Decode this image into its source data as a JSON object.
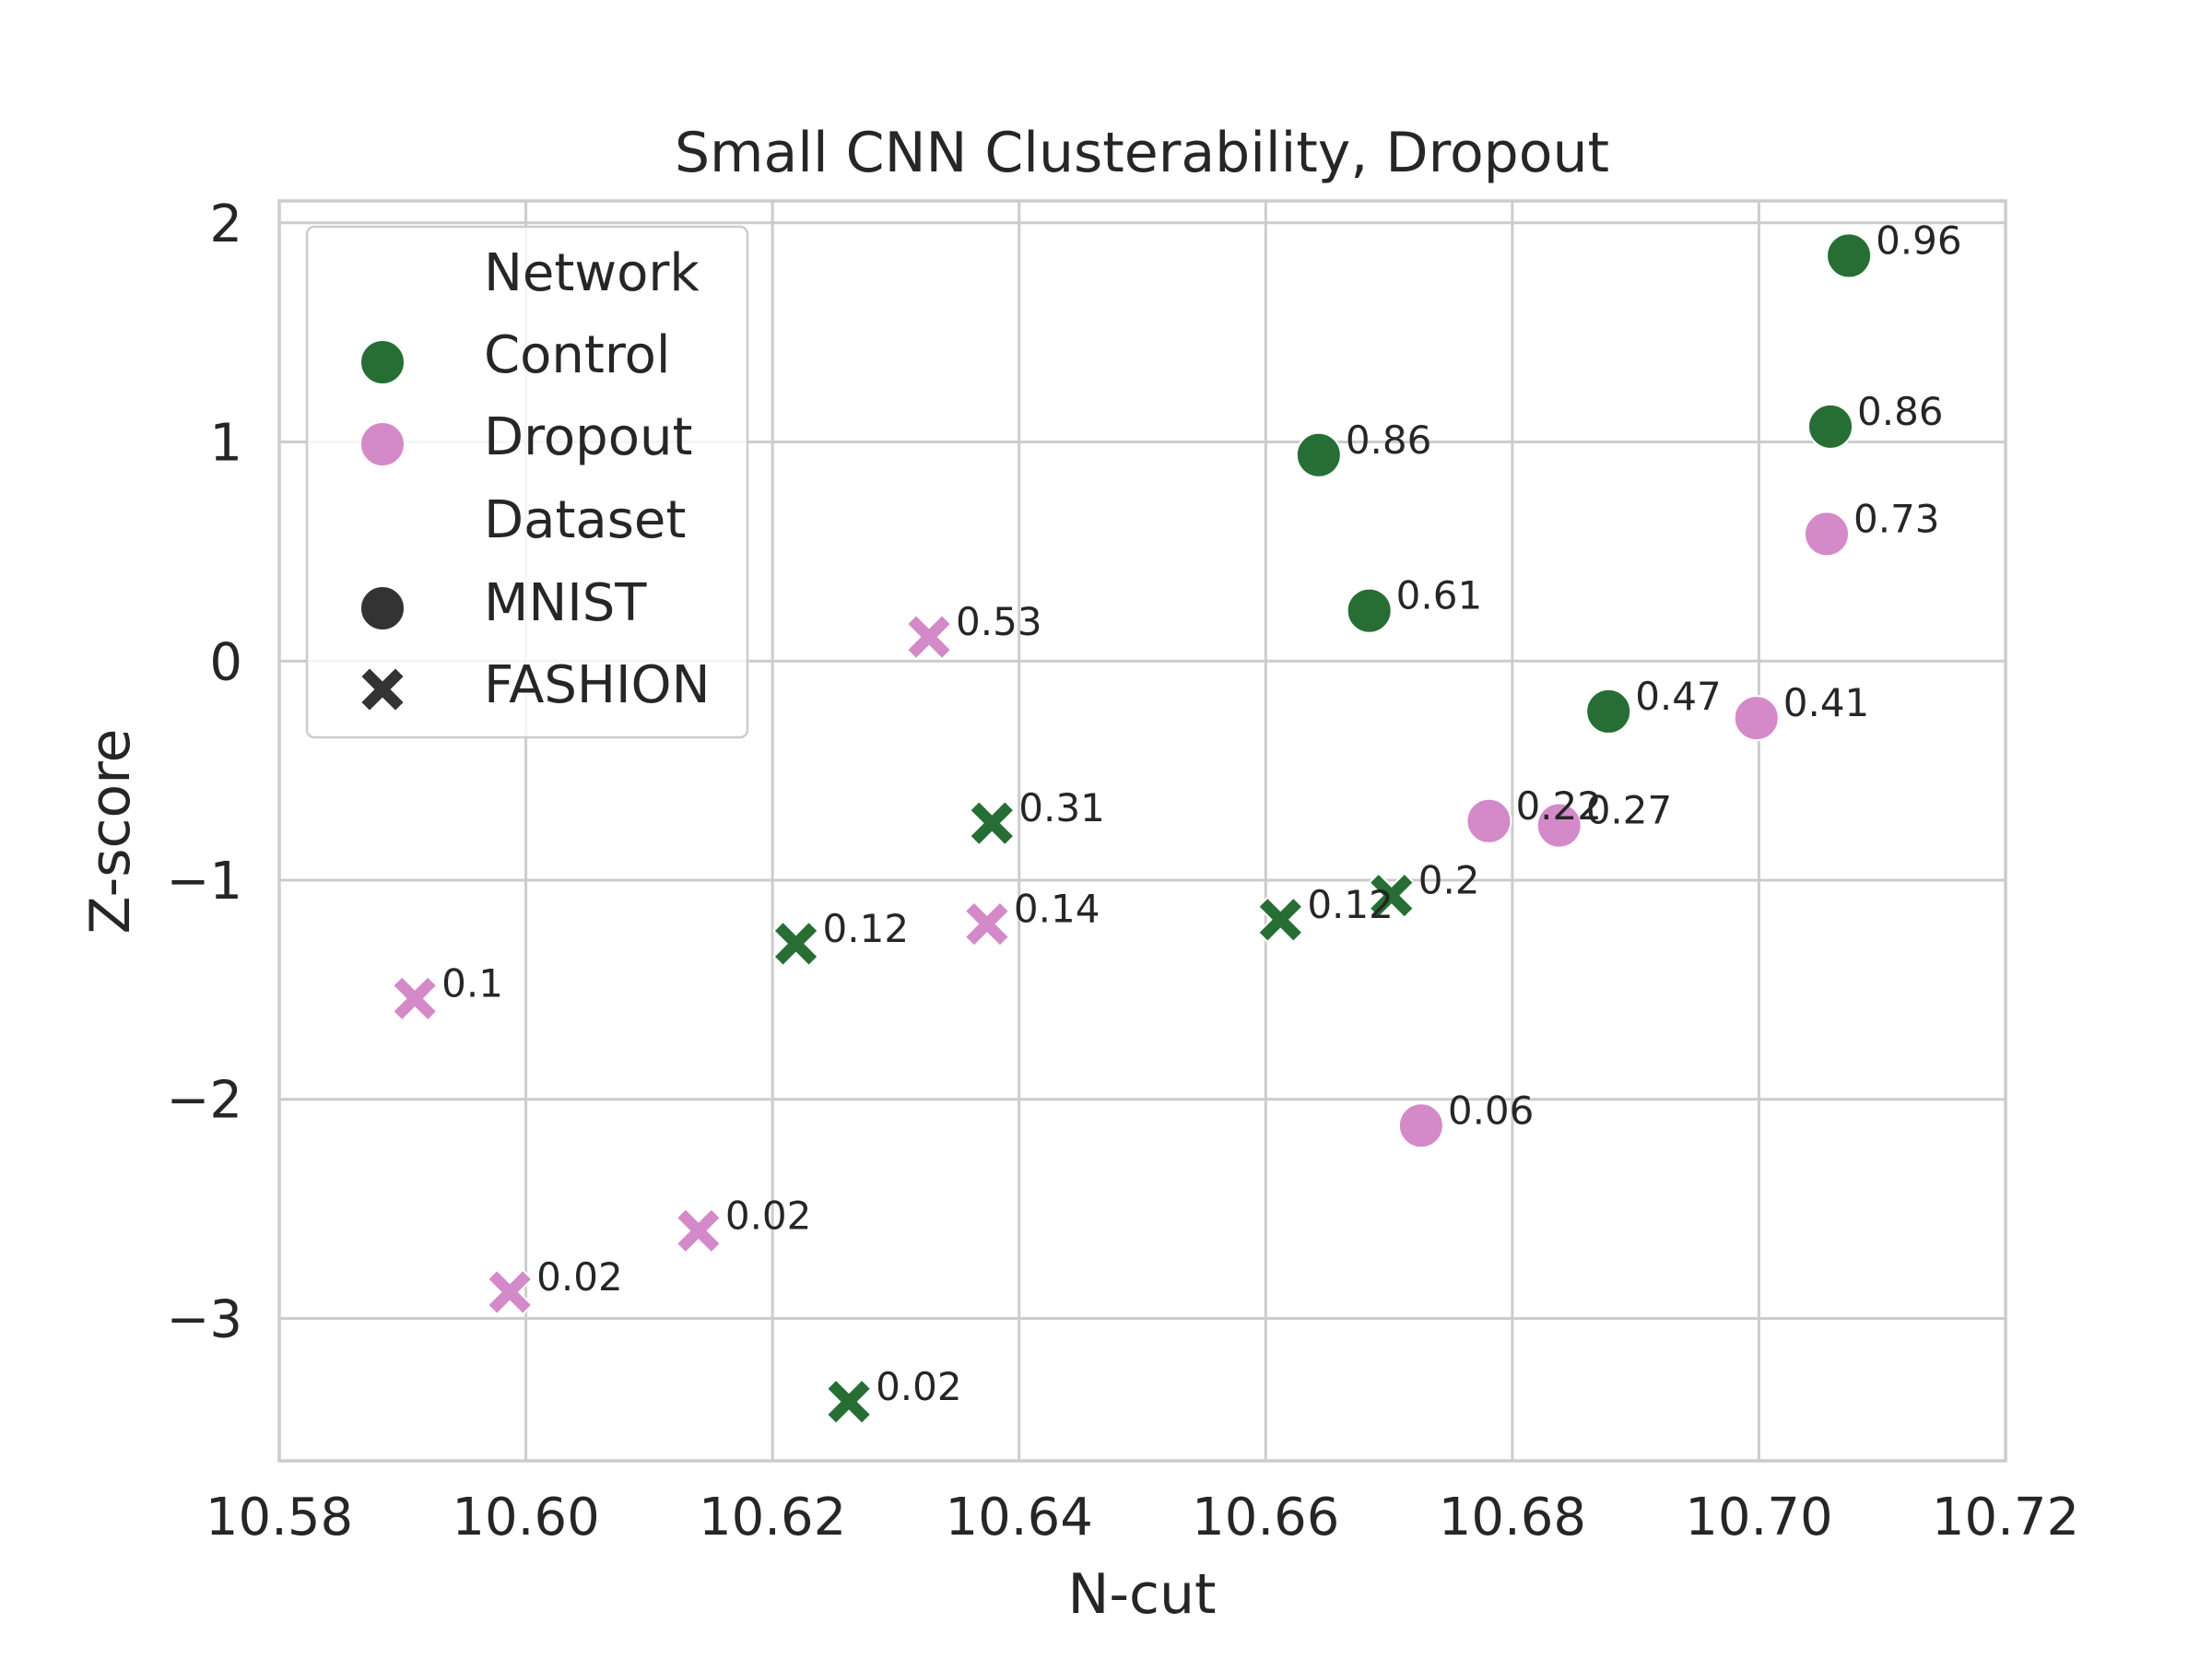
{
  "chart_data": {
    "type": "scatter",
    "title": "Small CNN Clusterability, Dropout",
    "xlabel": "N-cut",
    "ylabel": "Z-score",
    "xlim": [
      10.58,
      10.72
    ],
    "ylim": [
      -3.65,
      2.1
    ],
    "xticks": [
      10.58,
      10.6,
      10.62,
      10.64,
      10.66,
      10.68,
      10.7,
      10.72
    ],
    "xtick_labels": [
      "10.58",
      "10.60",
      "10.62",
      "10.64",
      "10.66",
      "10.68",
      "10.70",
      "10.72"
    ],
    "yticks": [
      2,
      1,
      0,
      -1,
      -2,
      -3
    ],
    "ytick_labels": [
      "2",
      "1",
      "0",
      "−1",
      "−2",
      "−3"
    ],
    "grid": true,
    "legend": {
      "position": "top-left",
      "network_title": "Network",
      "network_entries": [
        {
          "label": "Control",
          "color": "#276e35"
        },
        {
          "label": "Dropout",
          "color": "#d48ac8"
        }
      ],
      "dataset_title": "Dataset",
      "dataset_entries": [
        {
          "label": "MNIST",
          "marker": "circle"
        },
        {
          "label": "FASHION",
          "marker": "x"
        }
      ]
    },
    "colors": {
      "Control": "#276e35",
      "Dropout": "#d48ac8",
      "grid": "#cccccc",
      "text": "#262626",
      "legend_marker": "#333333"
    },
    "points": [
      {
        "x": 10.7073,
        "y": 1.85,
        "network": "Control",
        "dataset": "MNIST",
        "label": "0.96"
      },
      {
        "x": 10.7058,
        "y": 1.07,
        "network": "Control",
        "dataset": "MNIST",
        "label": "0.86"
      },
      {
        "x": 10.6643,
        "y": 0.94,
        "network": "Control",
        "dataset": "MNIST",
        "label": "0.86"
      },
      {
        "x": 10.6684,
        "y": 0.23,
        "network": "Control",
        "dataset": "MNIST",
        "label": "0.61"
      },
      {
        "x": 10.6878,
        "y": -0.23,
        "network": "Control",
        "dataset": "MNIST",
        "label": "0.47"
      },
      {
        "x": 10.7055,
        "y": 0.58,
        "network": "Dropout",
        "dataset": "MNIST",
        "label": "0.73"
      },
      {
        "x": 10.6998,
        "y": -0.26,
        "network": "Dropout",
        "dataset": "MNIST",
        "label": "0.41"
      },
      {
        "x": 10.6781,
        "y": -0.73,
        "network": "Dropout",
        "dataset": "MNIST",
        "label": "0.22"
      },
      {
        "x": 10.6838,
        "y": -0.75,
        "network": "Dropout",
        "dataset": "MNIST",
        "label": "0.27"
      },
      {
        "x": 10.6726,
        "y": -2.12,
        "network": "Dropout",
        "dataset": "MNIST",
        "label": "0.06"
      },
      {
        "x": 10.6378,
        "y": -0.74,
        "network": "Control",
        "dataset": "FASHION",
        "label": "0.31"
      },
      {
        "x": 10.6219,
        "y": -1.29,
        "network": "Control",
        "dataset": "FASHION",
        "label": "0.12"
      },
      {
        "x": 10.6612,
        "y": -1.18,
        "network": "Control",
        "dataset": "FASHION",
        "label": "0.12"
      },
      {
        "x": 10.6702,
        "y": -1.07,
        "network": "Control",
        "dataset": "FASHION",
        "label": "0.2"
      },
      {
        "x": 10.6262,
        "y": -3.38,
        "network": "Control",
        "dataset": "FASHION",
        "label": "0.02"
      },
      {
        "x": 10.6327,
        "y": 0.11,
        "network": "Dropout",
        "dataset": "FASHION",
        "label": "0.53"
      },
      {
        "x": 10.6374,
        "y": -1.2,
        "network": "Dropout",
        "dataset": "FASHION",
        "label": "0.14"
      },
      {
        "x": 10.591,
        "y": -1.54,
        "network": "Dropout",
        "dataset": "FASHION",
        "label": "0.1"
      },
      {
        "x": 10.614,
        "y": -2.6,
        "network": "Dropout",
        "dataset": "FASHION",
        "label": "0.02"
      },
      {
        "x": 10.5987,
        "y": -2.88,
        "network": "Dropout",
        "dataset": "FASHION",
        "label": "0.02"
      }
    ]
  }
}
